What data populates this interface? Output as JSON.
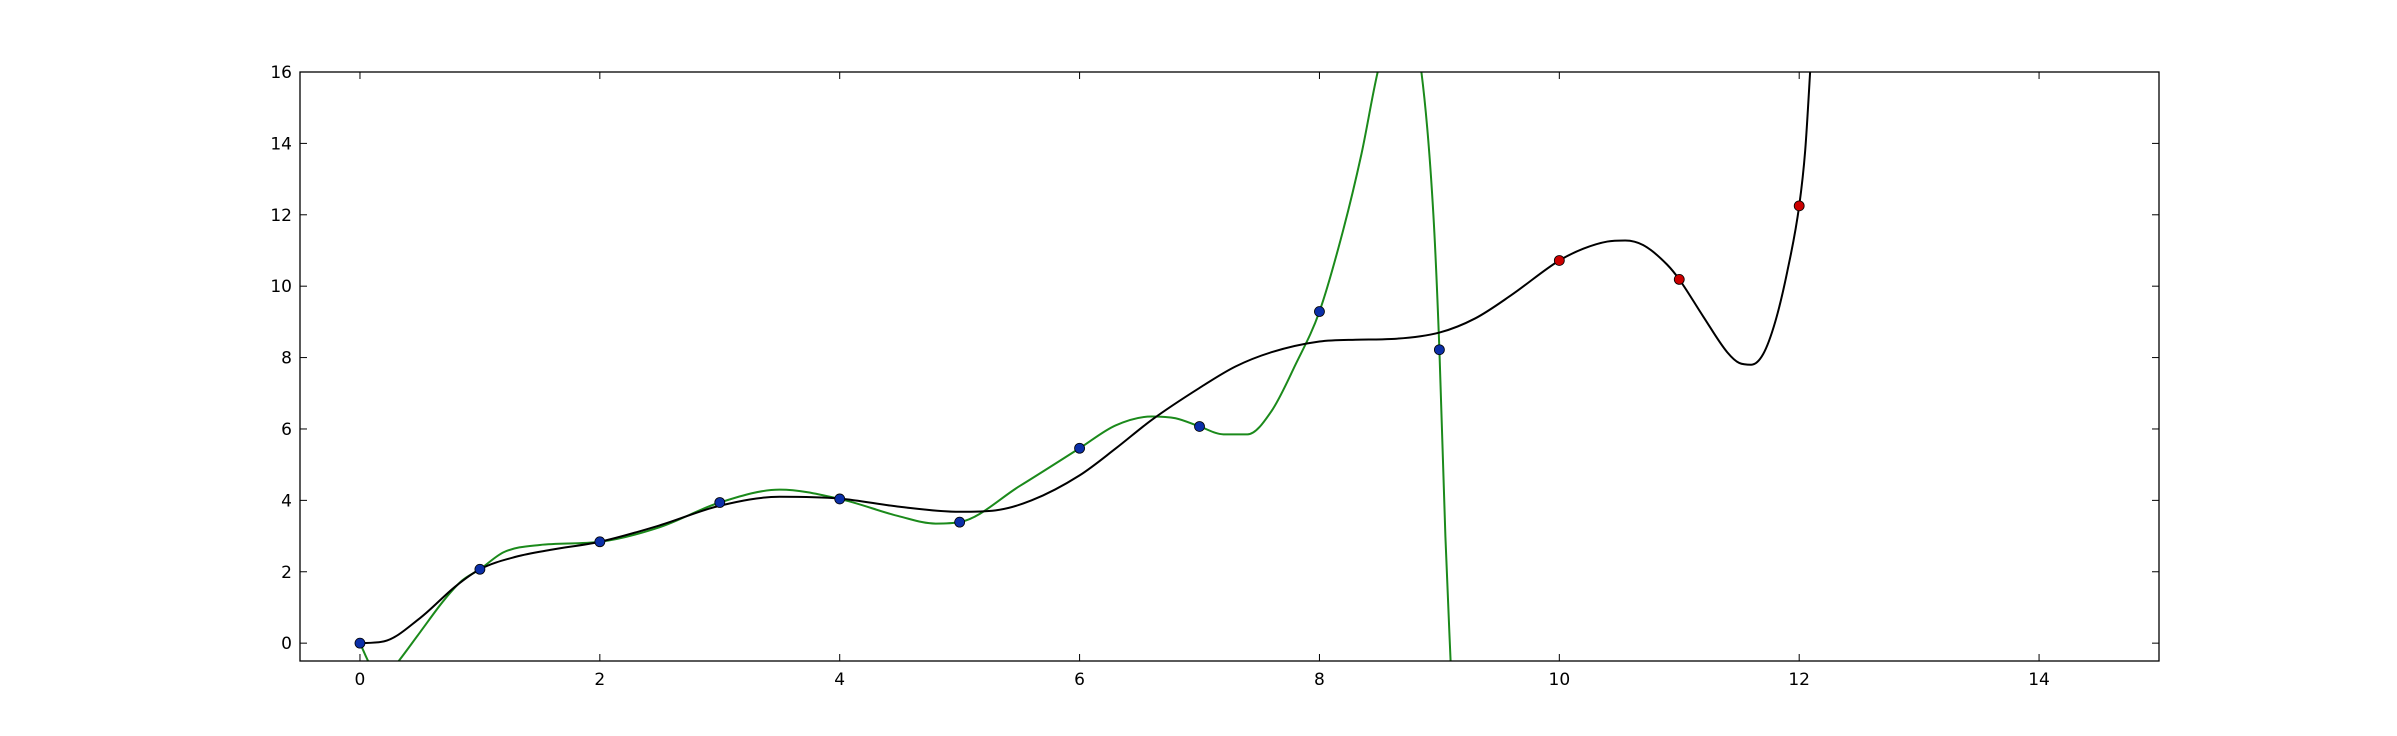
{
  "chart_data": {
    "type": "line",
    "title": "",
    "xlabel": "",
    "ylabel": "",
    "xlim": [
      -0.5,
      15
    ],
    "ylim": [
      -0.5,
      16
    ],
    "xticks": [
      0,
      2,
      4,
      6,
      8,
      10,
      12,
      14
    ],
    "yticks": [
      0,
      2,
      4,
      6,
      8,
      10,
      12,
      14,
      16
    ],
    "grid": false,
    "legend": "none",
    "colors": {
      "black_curve": "#000000",
      "green_curve": "#1b8a1b",
      "blue_points": "#0b2fa8",
      "red_points": "#cc0000",
      "axes": "#000000"
    },
    "series": [
      {
        "kind": "points",
        "color": "blue",
        "x": [
          0,
          1,
          2,
          3,
          4,
          5,
          6,
          7,
          8,
          9
        ],
        "y": [
          0.0,
          2.07,
          2.84,
          3.94,
          4.04,
          3.39,
          5.46,
          6.07,
          9.29,
          8.22
        ]
      },
      {
        "kind": "points",
        "color": "red",
        "x": [
          10,
          11,
          12
        ],
        "y": [
          10.72,
          10.19,
          12.25
        ]
      },
      {
        "kind": "curve",
        "color": "black",
        "x": [
          0,
          0.2,
          0.5,
          0.8,
          1.0,
          1.3,
          1.6,
          2.0,
          2.5,
          3.0,
          3.5,
          4.0,
          4.5,
          5.0,
          5.3,
          5.6,
          6.0,
          6.3,
          6.6,
          7.0,
          7.3,
          7.6,
          8.0,
          8.3,
          8.6,
          9.0,
          9.3,
          9.6,
          10.0,
          10.2,
          10.4,
          10.55,
          10.7,
          10.9,
          11.0,
          11.2,
          11.4,
          11.5,
          11.6,
          11.7,
          11.8,
          11.9,
          12.0,
          12.05,
          12.1
        ],
        "y": [
          0.0,
          0.05,
          0.7,
          1.6,
          2.07,
          2.42,
          2.62,
          2.84,
          3.3,
          3.85,
          4.1,
          4.05,
          3.82,
          3.68,
          3.72,
          4.0,
          4.7,
          5.45,
          6.25,
          7.15,
          7.75,
          8.15,
          8.45,
          8.5,
          8.52,
          8.7,
          9.1,
          9.75,
          10.72,
          11.05,
          11.25,
          11.28,
          11.15,
          10.6,
          10.19,
          9.15,
          8.15,
          7.85,
          7.8,
          8.1,
          9.0,
          10.4,
          12.25,
          13.8,
          16.5
        ]
      },
      {
        "kind": "curve",
        "color": "green",
        "x": [
          0,
          0.1,
          0.2,
          0.3,
          0.5,
          0.7,
          0.85,
          1.0,
          1.2,
          1.5,
          2.0,
          2.5,
          3.0,
          3.5,
          4.0,
          4.5,
          4.8,
          5.0,
          5.5,
          6.0,
          6.3,
          6.6,
          6.8,
          7.0,
          7.2,
          7.4,
          7.6,
          7.8,
          8.0,
          8.2,
          8.35,
          8.5,
          8.7,
          8.85,
          8.95,
          9.0,
          9.05,
          9.1
        ],
        "y": [
          0.0,
          -0.7,
          -1.0,
          -0.6,
          0.3,
          1.2,
          1.75,
          2.07,
          2.55,
          2.75,
          2.84,
          3.25,
          3.94,
          4.3,
          4.04,
          3.55,
          3.35,
          3.39,
          4.4,
          5.46,
          6.1,
          6.35,
          6.3,
          6.07,
          5.85,
          5.85,
          6.5,
          7.8,
          9.29,
          11.6,
          13.7,
          16.2,
          18.0,
          16.0,
          12.0,
          8.22,
          3.0,
          -1.0
        ]
      }
    ]
  }
}
